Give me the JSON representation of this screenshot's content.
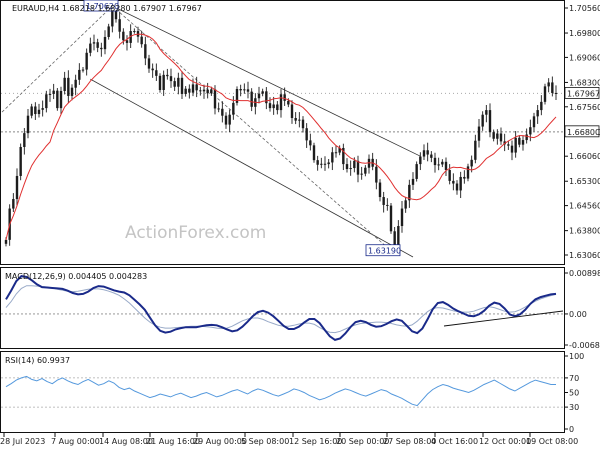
{
  "colors": {
    "background": "#ffffff",
    "candle": "#1c1c1c",
    "ma": "#e03030",
    "channel": "#333333",
    "macd_line": "#1a2a8a",
    "macd_signal": "#99aac8",
    "rsi": "#5599dd",
    "grid_dash": "#888888",
    "price_box_bg": "#ffffff"
  },
  "chart_data": [
    {
      "type": "candlestick",
      "title": "EURAUD,H4 1.68218 1.68280 1.67907 1.67967",
      "symbol": "EURAUD,H4",
      "ohlc": {
        "open": "1.68218",
        "high": "1.68280",
        "low": "1.67907",
        "close": "1.67967"
      },
      "y_ticks": [
        "1.70560",
        "1.69800",
        "1.69060",
        "1.68300",
        "1.67560",
        "1.66800",
        "1.66060",
        "1.65300",
        "1.64560",
        "1.63800",
        "1.63060"
      ],
      "ylim": [
        1.6306,
        1.7056
      ],
      "current_price": "1.67967",
      "level_label": "1.66800",
      "level_value": 1.668,
      "annotations": [
        {
          "text": "1.70620",
          "price": 1.7062
        },
        {
          "text": "1.63190",
          "price": 1.6319
        }
      ],
      "watermark": "ActionForex.com",
      "moving_average": "red line",
      "series": [
        {
          "close": [
            1.6352,
            1.6447,
            1.6476,
            1.6546,
            1.6634,
            1.6676,
            1.6729,
            1.6757,
            1.6734,
            1.6747,
            1.6752,
            1.6794,
            1.6795,
            1.6805,
            1.6752,
            1.6804,
            1.6844,
            1.6789,
            1.6814,
            1.6838,
            1.6868,
            1.6869,
            1.692,
            1.6948,
            1.6952,
            1.6935,
            1.6931,
            1.6968,
            1.7,
            1.7056,
            1.7022,
            1.6984,
            1.6958,
            1.695,
            1.6986,
            1.6986,
            1.6969,
            1.6946,
            1.6903,
            1.6872,
            1.6867,
            1.685,
            1.6807,
            1.6853,
            1.6849,
            1.6834,
            1.6817,
            1.6844,
            1.6795,
            1.6811,
            1.6799,
            1.6824,
            1.6806,
            1.6803,
            1.6808,
            1.6797,
            1.6809,
            1.6751,
            1.675,
            1.6729,
            1.6702,
            1.6732,
            1.6768,
            1.681,
            1.6806,
            1.6809,
            1.6802,
            1.6756,
            1.6782,
            1.6796,
            1.6803,
            1.6767,
            1.6752,
            1.6763,
            1.6746,
            1.6794,
            1.6774,
            1.6763,
            1.6722,
            1.6714,
            1.6717,
            1.6691,
            1.6654,
            1.6639,
            1.6594,
            1.658,
            1.6583,
            1.6582,
            1.6587,
            1.6618,
            1.6617,
            1.6631,
            1.6582,
            1.6567,
            1.657,
            1.6592,
            1.655,
            1.6553,
            1.6571,
            1.6598,
            1.6574,
            1.6526,
            1.6482,
            1.6458,
            1.6456,
            1.6378,
            1.6337,
            1.6394,
            1.6447,
            1.6472,
            1.6519,
            1.6537,
            1.6582,
            1.6605,
            1.6624,
            1.6611,
            1.6601,
            1.6579,
            1.6581,
            1.6589,
            1.6564,
            1.6531,
            1.6523,
            1.6502,
            1.6543,
            1.6538,
            1.6575,
            1.6595,
            1.6653,
            1.6696,
            1.6732,
            1.6746,
            1.6679,
            1.6659,
            1.6675,
            1.6651,
            1.6642,
            1.6638,
            1.6617,
            1.6662,
            1.6641,
            1.6655,
            1.6672,
            1.6694,
            1.6727,
            1.6746,
            1.6771,
            1.6818,
            1.683,
            1.6798,
            1.6797
          ]
        }
      ]
    },
    {
      "type": "line",
      "title": "MACD(12,26,9) 0.004405 0.004283",
      "y_ticks": [
        "0.008986",
        "0.00",
        "-0.006816"
      ],
      "ylim": [
        -0.006816,
        0.008986
      ],
      "macd_value": "0.004405",
      "signal_value": "0.004283",
      "series": [
        {
          "values": [
            0.0032,
            0.0051,
            0.0072,
            0.0083,
            0.0081,
            0.0074,
            0.0065,
            0.0059,
            0.0058,
            0.0057,
            0.0056,
            0.0055,
            0.0051,
            0.0046,
            0.0043,
            0.0044,
            0.0049,
            0.0057,
            0.0061,
            0.006,
            0.0056,
            0.0052,
            0.0049,
            0.0047,
            0.0041,
            0.0031,
            0.0021,
            0.0009,
            -0.0008,
            -0.0025,
            -0.0037,
            -0.0041,
            -0.0039,
            -0.0034,
            -0.0031,
            -0.0029,
            -0.0029,
            -0.0029,
            -0.0027,
            -0.0025,
            -0.0024,
            -0.0025,
            -0.0029,
            -0.0034,
            -0.0038,
            -0.0036,
            -0.0028,
            -0.0017,
            -0.0005,
            0.0004,
            0.0007,
            0.0003,
            -0.0005,
            -0.0015,
            -0.0026,
            -0.0033,
            -0.0033,
            -0.0028,
            -0.0019,
            -0.0011,
            -0.0011,
            -0.002,
            -0.0035,
            -0.0049,
            -0.0057,
            -0.0054,
            -0.0043,
            -0.0029,
            -0.0018,
            -0.0015,
            -0.0018,
            -0.0024,
            -0.0028,
            -0.0027,
            -0.0022,
            -0.0016,
            -0.0012,
            -0.0015,
            -0.0026,
            -0.0038,
            -0.0042,
            -0.0032,
            -0.0012,
            0.001,
            0.0024,
            0.0026,
            0.002,
            0.0012,
            0.0006,
            0.0001,
            -0.0004,
            -0.0005,
            -0.0001,
            0.0007,
            0.0018,
            0.0025,
            0.0022,
            0.0012,
            -0.0001,
            -0.0005,
            -0.0001,
            0.0009,
            0.0022,
            0.0032,
            0.0037,
            0.004,
            0.0043,
            0.0044
          ]
        },
        {
          "values": [
            0.0014,
            0.0027,
            0.0044,
            0.0056,
            0.0062,
            0.0062,
            0.0061,
            0.006,
            0.0059,
            0.0057,
            0.0054,
            0.0052,
            0.005,
            0.0049,
            0.005,
            0.0052,
            0.0054,
            0.0055,
            0.0055,
            0.0053,
            0.005,
            0.0046,
            0.0041,
            0.0033,
            0.0024,
            0.0013,
            0.0002,
            -0.0009,
            -0.0018,
            -0.0025,
            -0.0029,
            -0.0031,
            -0.0031,
            -0.003,
            -0.0029,
            -0.0028,
            -0.0027,
            -0.0027,
            -0.0027,
            -0.0028,
            -0.0029,
            -0.0031,
            -0.0032,
            -0.0031,
            -0.0027,
            -0.0021,
            -0.0015,
            -0.0011,
            -0.0009,
            -0.0009,
            -0.0012,
            -0.0017,
            -0.0021,
            -0.0025,
            -0.0027,
            -0.0027,
            -0.0025,
            -0.0022,
            -0.002,
            -0.002,
            -0.0023,
            -0.003,
            -0.0036,
            -0.004,
            -0.0041,
            -0.0038,
            -0.0033,
            -0.0028,
            -0.0024,
            -0.0021,
            -0.002,
            -0.0019,
            -0.0018,
            -0.0018,
            -0.0019,
            -0.0021,
            -0.0024,
            -0.0026,
            -0.0027,
            -0.0024,
            -0.0016,
            -0.0005,
            0.0005,
            0.0012,
            0.0014,
            0.0013,
            0.001,
            0.0007,
            0.0005,
            0.0004,
            0.0004,
            0.0006,
            0.001,
            0.0014,
            0.0016,
            0.0014,
            0.001,
            0.0006,
            0.0004,
            0.0005,
            0.0009,
            0.0015,
            0.0022,
            0.0028,
            0.0033,
            0.0037,
            0.004,
            0.0043
          ]
        }
      ]
    },
    {
      "type": "line",
      "title": "RSI(14) 60.9937",
      "y_ticks": [
        "100",
        "70",
        "50",
        "30",
        "0"
      ],
      "ylim": [
        0,
        100
      ],
      "value": "60.9937",
      "series": [
        {
          "values": [
            58,
            62,
            67,
            70,
            72,
            68,
            66,
            69,
            65,
            62,
            67,
            70,
            66,
            63,
            61,
            65,
            68,
            64,
            60,
            62,
            66,
            63,
            57,
            54,
            56,
            52,
            49,
            46,
            43,
            45,
            48,
            46,
            44,
            47,
            49,
            46,
            43,
            45,
            48,
            50,
            47,
            44,
            46,
            49,
            52,
            54,
            51,
            48,
            52,
            55,
            53,
            50,
            47,
            45,
            48,
            51,
            55,
            53,
            50,
            46,
            43,
            40,
            42,
            45,
            49,
            52,
            55,
            53,
            50,
            47,
            45,
            48,
            51,
            54,
            52,
            48,
            45,
            42,
            38,
            34,
            32,
            40,
            48,
            54,
            58,
            61,
            59,
            56,
            54,
            52,
            50,
            53,
            57,
            61,
            64,
            67,
            63,
            59,
            55,
            52,
            56,
            60,
            64,
            67,
            65,
            63,
            61,
            61
          ]
        }
      ]
    },
    {
      "type": "x-axis",
      "ticks": [
        "28 Jul 2023",
        "7 Aug 00:00",
        "14 Aug 08:00",
        "21 Aug 16:00",
        "29 Aug 00:00",
        "5 Sep 08:00",
        "12 Sep 16:00",
        "20 Sep 00:00",
        "27 Sep 08:00",
        "4 Oct 16:00",
        "12 Oct 00:00",
        "19 Oct 08:00"
      ]
    }
  ]
}
